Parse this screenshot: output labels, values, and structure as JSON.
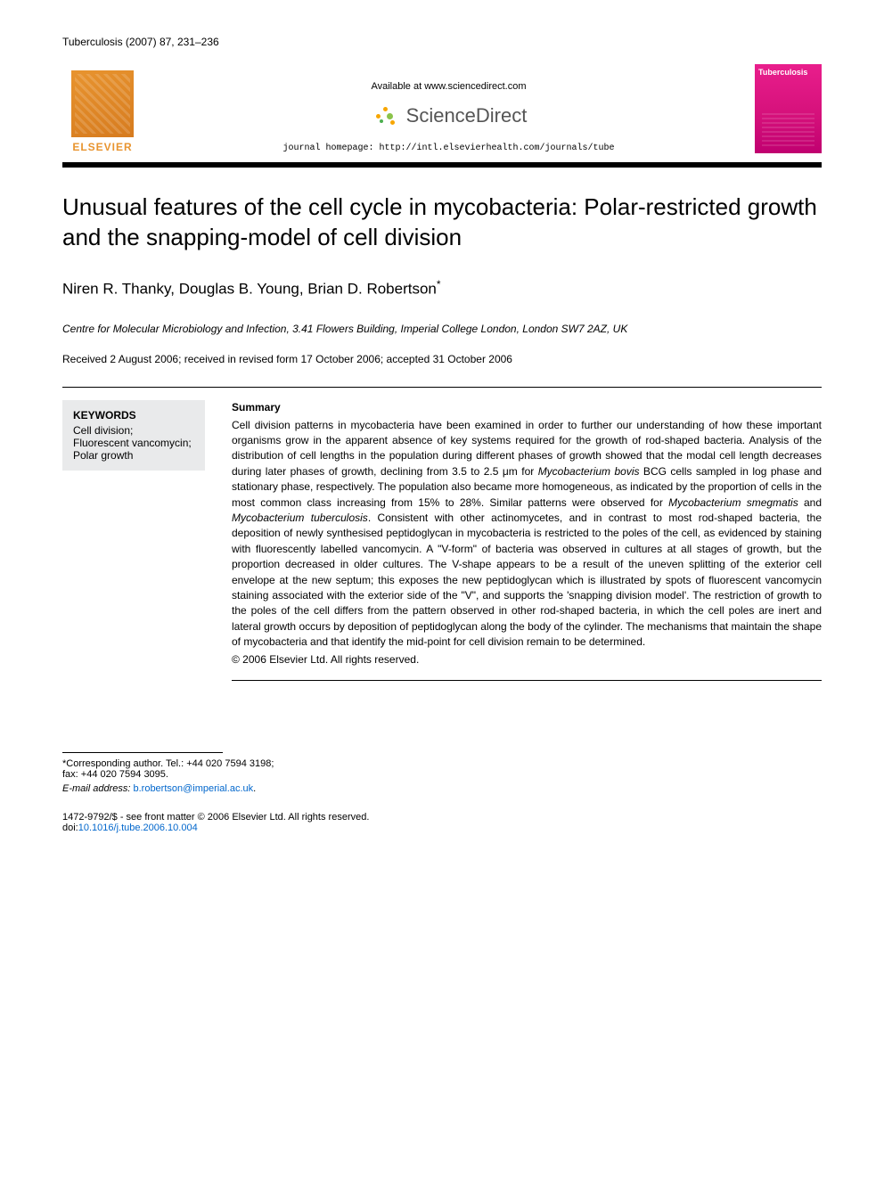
{
  "header": {
    "citation": "Tuberculosis (2007) 87, 231–236",
    "available_text": "Available at www.sciencedirect.com",
    "sd_brand": "ScienceDirect",
    "sd_dot_colors": [
      "#f7a600",
      "#f7a600",
      "#8bc34a",
      "#8bc34a",
      "#4caf50",
      "#f7a600"
    ],
    "homepage_text": "journal homepage: http://intl.elsevierhealth.com/journals/tube",
    "elsevier_label": "ELSEVIER",
    "elsevier_color": "#e8942f",
    "journal_cover_label": "Tuberculosis",
    "journal_cover_bg": "#e91e8c",
    "black_bar_color": "#000000"
  },
  "article": {
    "title": "Unusual features of the cell cycle in mycobacteria: Polar-restricted growth and the snapping-model of cell division",
    "authors_html": "Niren R. Thanky, Douglas B. Young, Brian D. Robertson",
    "corresponding_marker": "*",
    "affiliation": "Centre for Molecular Microbiology and Infection, 3.41 Flowers Building, Imperial College London, London SW7 2AZ, UK",
    "dates": "Received 2 August 2006; received in revised form 17 October 2006; accepted 31 October 2006"
  },
  "keywords": {
    "heading": "KEYWORDS",
    "items": [
      "Cell division;",
      "Fluorescent vancomycin;",
      "Polar growth"
    ],
    "box_bg": "#e9eaeb"
  },
  "summary": {
    "heading": "Summary",
    "body": "Cell division patterns in mycobacteria have been examined in order to further our understanding of how these important organisms grow in the apparent absence of key systems required for the growth of rod-shaped bacteria. Analysis of the distribution of cell lengths in the population during different phases of growth showed that the modal cell length decreases during later phases of growth, declining from 3.5 to 2.5 μm for Mycobacterium bovis BCG cells sampled in log phase and stationary phase, respectively. The population also became more homogeneous, as indicated by the proportion of cells in the most common class increasing from 15% to 28%. Similar patterns were observed for Mycobacterium smegmatis and Mycobacterium tuberculosis. Consistent with other actinomycetes, and in contrast to most rod-shaped bacteria, the deposition of newly synthesised peptidoglycan in mycobacteria is restricted to the poles of the cell, as evidenced by staining with fluorescently labelled vancomycin. A \"V-form\" of bacteria was observed in cultures at all stages of growth, but the proportion decreased in older cultures. The V-shape appears to be a result of the uneven splitting of the exterior cell envelope at the new septum; this exposes the new peptidoglycan which is illustrated by spots of fluorescent vancomycin staining associated with the exterior side of the \"V\", and supports the 'snapping division model'. The restriction of growth to the poles of the cell differs from the pattern observed in other rod-shaped bacteria, in which the cell poles are inert and lateral growth occurs by deposition of peptidoglycan along the body of the cylinder. The mechanisms that maintain the shape of mycobacteria and that identify the mid-point for cell division remain to be determined.",
    "copyright": "© 2006 Elsevier Ltd. All rights reserved."
  },
  "footer": {
    "corresponding_text": "*Corresponding author. Tel.: +44 020 7594 3198;",
    "fax_text": "fax: +44 020 7594 3095.",
    "email_label": "E-mail address:",
    "email": "b.robertson@imperial.ac.uk",
    "issn_line": "1472-9792/$ - see front matter © 2006 Elsevier Ltd. All rights reserved.",
    "doi_label": "doi:",
    "doi": "10.1016/j.tube.2006.10.004"
  },
  "typography": {
    "title_fontsize": 26,
    "authors_fontsize": 17,
    "body_fontsize": 12,
    "header_fontsize": 12,
    "footer_fontsize": 11
  },
  "colors": {
    "text": "#000000",
    "link": "#0066cc",
    "background": "#ffffff"
  }
}
